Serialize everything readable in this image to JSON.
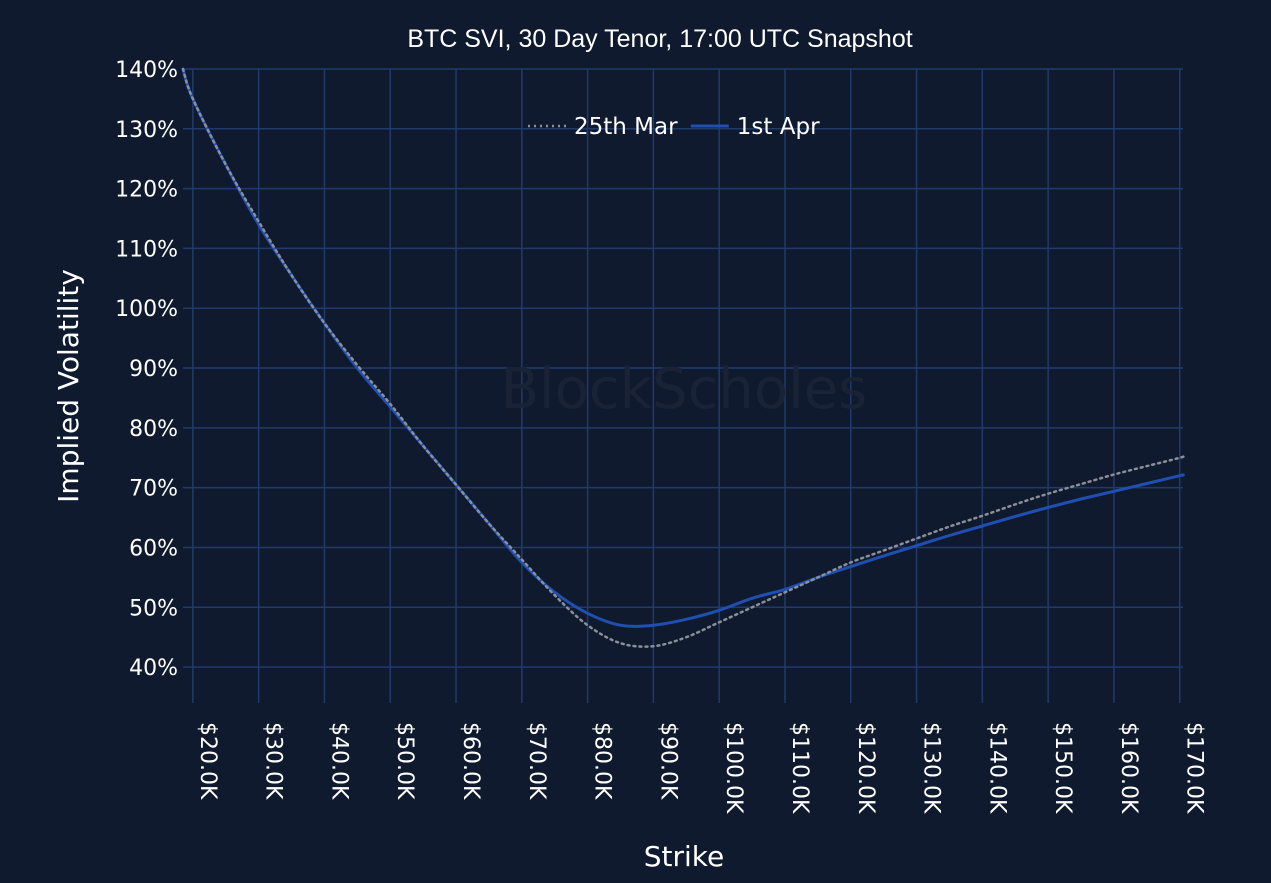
{
  "chart_data": {
    "type": "line",
    "title": "BTC SVI, 30 Day Tenor, 17:00 UTC Snapshot",
    "xlabel": "Strike",
    "ylabel": "Implied Volatility",
    "watermark": "BlockScholes",
    "xlim": [
      18500,
      170500
    ],
    "ylim": [
      34,
      140
    ],
    "x_ticks": [
      20000,
      30000,
      40000,
      50000,
      60000,
      70000,
      80000,
      90000,
      100000,
      110000,
      120000,
      130000,
      140000,
      150000,
      160000,
      170000
    ],
    "x_tick_labels": [
      "$20.0K",
      "$30.0K",
      "$40.0K",
      "$50.0K",
      "$60.0K",
      "$70.0K",
      "$80.0K",
      "$90.0K",
      "$100.0K",
      "$110.0K",
      "$120.0K",
      "$130.0K",
      "$140.0K",
      "$150.0K",
      "$160.0K",
      "$170.0K"
    ],
    "y_ticks": [
      40,
      50,
      60,
      70,
      80,
      90,
      100,
      110,
      120,
      130,
      140
    ],
    "y_tick_labels": [
      "40%",
      "50%",
      "60%",
      "70%",
      "80%",
      "90%",
      "100%",
      "110%",
      "120%",
      "130%",
      "140%"
    ],
    "grid": true,
    "legend_position": "top-center",
    "colors": {
      "background": "#0f1a2e",
      "grid": "#223a6b",
      "text": "#ffffff"
    },
    "series": [
      {
        "name": "25th Mar",
        "style": "dotted",
        "color": "#8a8f99",
        "x": [
          18500,
          20000,
          25000,
          30000,
          35000,
          40000,
          45000,
          50000,
          55000,
          60000,
          65000,
          70000,
          75000,
          80000,
          85000,
          90000,
          95000,
          100000,
          105000,
          110000,
          115000,
          120000,
          125000,
          130000,
          135000,
          140000,
          145000,
          150000,
          155000,
          160000,
          165000,
          170000,
          170500
        ],
        "y": [
          140,
          135,
          124,
          114.5,
          105.5,
          97.5,
          90.5,
          84,
          77,
          70.5,
          64,
          58,
          52,
          47,
          44,
          43.5,
          45,
          47.5,
          50,
          52.5,
          55,
          57.5,
          59.5,
          61.5,
          63.5,
          65.3,
          67.2,
          69,
          70.6,
          72.2,
          73.6,
          75,
          75.2
        ]
      },
      {
        "name": "1st Apr",
        "style": "solid",
        "color": "#1f4fb0",
        "x": [
          18500,
          20000,
          25000,
          30000,
          35000,
          40000,
          45000,
          50000,
          55000,
          60000,
          65000,
          70000,
          75000,
          80000,
          85000,
          90000,
          95000,
          100000,
          105000,
          110000,
          115000,
          120000,
          125000,
          130000,
          135000,
          140000,
          145000,
          150000,
          155000,
          160000,
          165000,
          170000,
          170500
        ],
        "y": [
          140,
          135,
          124,
          114,
          105.5,
          97.5,
          90,
          83.5,
          77,
          70.5,
          64,
          57.5,
          52.5,
          49,
          47,
          47,
          48,
          49.5,
          51.5,
          53,
          55,
          56.8,
          58.6,
          60.3,
          62,
          63.6,
          65.2,
          66.7,
          68.1,
          69.4,
          70.7,
          72,
          72.1
        ]
      }
    ]
  }
}
